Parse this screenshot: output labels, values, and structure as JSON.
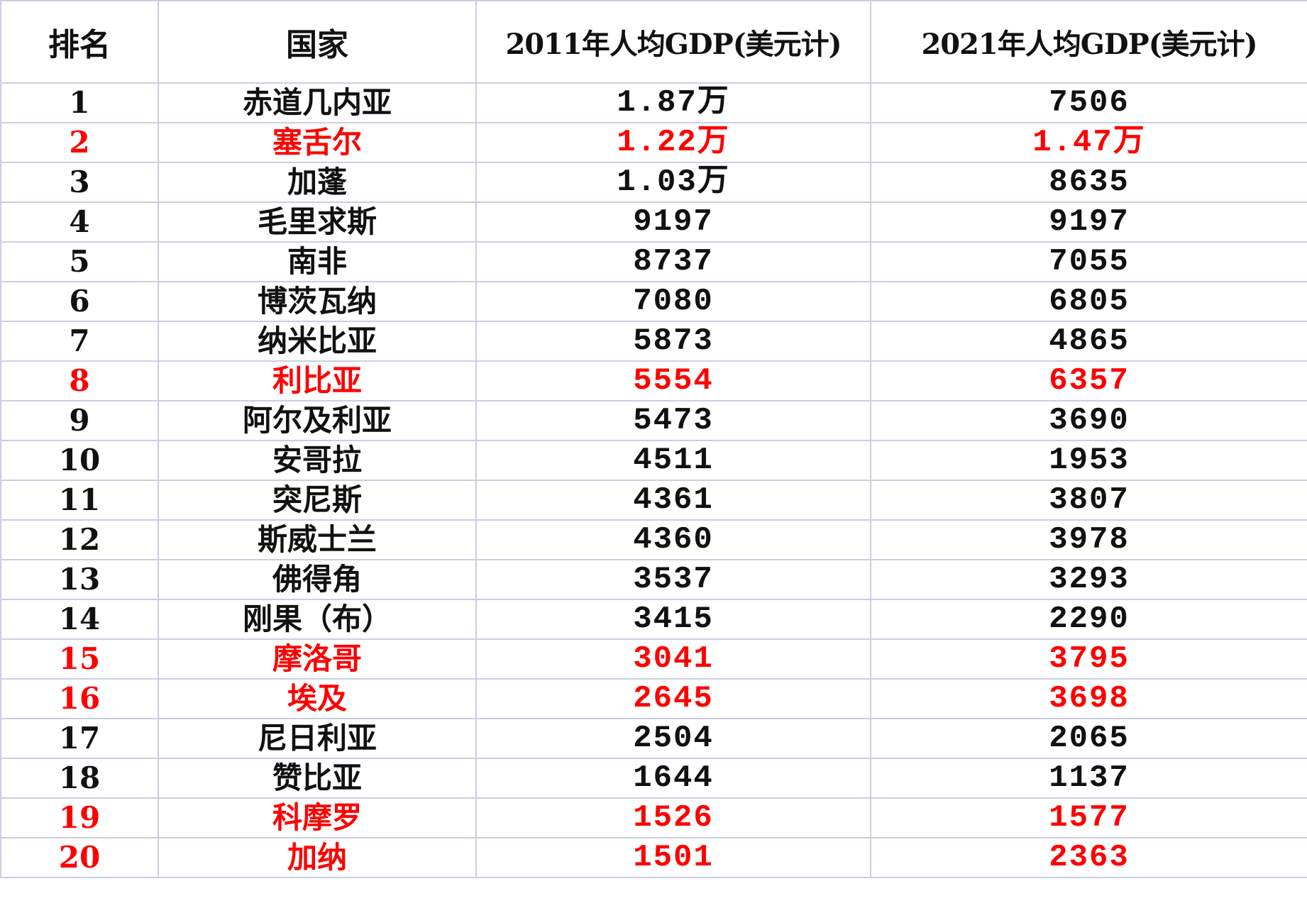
{
  "headers": {
    "rank": "排名",
    "country": "国家",
    "gdp_2011": "2011年人均GDP(美元计)",
    "gdp_2021": "2021年人均GDP(美元计)"
  },
  "highlight_color": "#ff0000",
  "rows": [
    {
      "rank": "1",
      "country": "赤道几内亚",
      "gdp_2011": "1.87万",
      "gdp_2021": "7506",
      "highlight": false
    },
    {
      "rank": "2",
      "country": "塞舌尔",
      "gdp_2011": "1.22万",
      "gdp_2021": "1.47万",
      "highlight": true
    },
    {
      "rank": "3",
      "country": "加蓬",
      "gdp_2011": "1.03万",
      "gdp_2021": "8635",
      "highlight": false
    },
    {
      "rank": "4",
      "country": "毛里求斯",
      "gdp_2011": "9197",
      "gdp_2021": "9197",
      "highlight": false
    },
    {
      "rank": "5",
      "country": "南非",
      "gdp_2011": "8737",
      "gdp_2021": "7055",
      "highlight": false
    },
    {
      "rank": "6",
      "country": "博茨瓦纳",
      "gdp_2011": "7080",
      "gdp_2021": "6805",
      "highlight": false
    },
    {
      "rank": "7",
      "country": "纳米比亚",
      "gdp_2011": "5873",
      "gdp_2021": "4865",
      "highlight": false
    },
    {
      "rank": "8",
      "country": "利比亚",
      "gdp_2011": "5554",
      "gdp_2021": "6357",
      "highlight": true
    },
    {
      "rank": "9",
      "country": "阿尔及利亚",
      "gdp_2011": "5473",
      "gdp_2021": "3690",
      "highlight": false
    },
    {
      "rank": "10",
      "country": "安哥拉",
      "gdp_2011": "4511",
      "gdp_2021": "1953",
      "highlight": false
    },
    {
      "rank": "11",
      "country": "突尼斯",
      "gdp_2011": "4361",
      "gdp_2021": "3807",
      "highlight": false
    },
    {
      "rank": "12",
      "country": "斯威士兰",
      "gdp_2011": "4360",
      "gdp_2021": "3978",
      "highlight": false
    },
    {
      "rank": "13",
      "country": "佛得角",
      "gdp_2011": "3537",
      "gdp_2021": "3293",
      "highlight": false
    },
    {
      "rank": "14",
      "country": "刚果（布）",
      "gdp_2011": "3415",
      "gdp_2021": "2290",
      "highlight": false
    },
    {
      "rank": "15",
      "country": "摩洛哥",
      "gdp_2011": "3041",
      "gdp_2021": "3795",
      "highlight": true
    },
    {
      "rank": "16",
      "country": "埃及",
      "gdp_2011": "2645",
      "gdp_2021": "3698",
      "highlight": true
    },
    {
      "rank": "17",
      "country": "尼日利亚",
      "gdp_2011": "2504",
      "gdp_2021": "2065",
      "highlight": false
    },
    {
      "rank": "18",
      "country": "赞比亚",
      "gdp_2011": "1644",
      "gdp_2021": "1137",
      "highlight": false
    },
    {
      "rank": "19",
      "country": "科摩罗",
      "gdp_2011": "1526",
      "gdp_2021": "1577",
      "highlight": true
    },
    {
      "rank": "20",
      "country": "加纳",
      "gdp_2011": "1501",
      "gdp_2021": "2363",
      "highlight": true
    }
  ]
}
